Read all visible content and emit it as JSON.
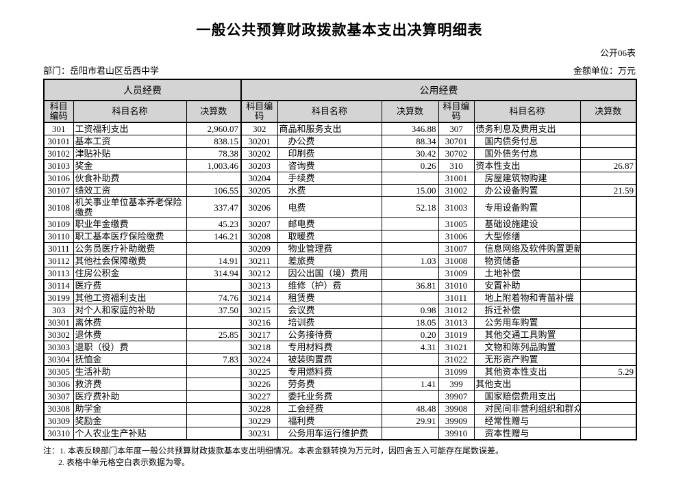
{
  "page": {
    "title": "一般公共预算财政拨款基本支出决算明细表",
    "table_code": "公开06表",
    "department_label": "部门：岳阳市君山区岳西中学",
    "unit_label": "金额单位：万元"
  },
  "table": {
    "group_headers": [
      "人员经费",
      "公用经费"
    ],
    "col_headers": [
      "科目编码",
      "科目名称",
      "决算数"
    ],
    "rows": [
      [
        "301",
        "工资福利支出",
        "2,960.07",
        "302",
        "商品和服务支出",
        "346.88",
        "307",
        "债务利息及费用支出",
        ""
      ],
      [
        "30101",
        "基本工资",
        "838.15",
        "30201",
        "　办公费",
        "88.34",
        "30701",
        "　国内债务付息",
        ""
      ],
      [
        "30102",
        "津贴补贴",
        "78.38",
        "30202",
        "　印刷费",
        "30.42",
        "30702",
        "　国外债务付息",
        ""
      ],
      [
        "30103",
        "奖金",
        "1,003.46",
        "30203",
        "　咨询费",
        "0.26",
        "310",
        "资本性支出",
        "26.87"
      ],
      [
        "30106",
        "伙食补助费",
        "",
        "30204",
        "　手续费",
        "",
        "31001",
        "　房屋建筑物购建",
        ""
      ],
      [
        "30107",
        "绩效工资",
        "106.55",
        "30205",
        "　水费",
        "15.00",
        "31002",
        "　办公设备购置",
        "21.59"
      ],
      [
        "30108",
        "机关事业单位基本养老保险缴费",
        "337.47",
        "30206",
        "　电费",
        "52.18",
        "31003",
        "　专用设备购置",
        ""
      ],
      [
        "30109",
        "职业年金缴费",
        "45.23",
        "30207",
        "　邮电费",
        "",
        "31005",
        "　基础设施建设",
        ""
      ],
      [
        "30110",
        "职工基本医疗保险缴费",
        "146.21",
        "30208",
        "　取暖费",
        "",
        "31006",
        "　大型修缮",
        ""
      ],
      [
        "30111",
        "公务员医疗补助缴费",
        "",
        "30209",
        "　物业管理费",
        "",
        "31007",
        "　信息网络及软件购置更新",
        ""
      ],
      [
        "30112",
        "其他社会保障缴费",
        "14.91",
        "30211",
        "　差旅费",
        "1.03",
        "31008",
        "　物资储备",
        ""
      ],
      [
        "30113",
        "住房公积金",
        "314.94",
        "30212",
        "　因公出国（境）费用",
        "",
        "31009",
        "　土地补偿",
        ""
      ],
      [
        "30114",
        "医疗费",
        "",
        "30213",
        "　维修（护）费",
        "36.81",
        "31010",
        "　安置补助",
        ""
      ],
      [
        "30199",
        "其他工资福利支出",
        "74.76",
        "30214",
        "　租赁费",
        "",
        "31011",
        "　地上附着物和青苗补偿",
        ""
      ],
      [
        "303",
        "对个人和家庭的补助",
        "37.50",
        "30215",
        "　会议费",
        "0.98",
        "31012",
        "　拆迁补偿",
        ""
      ],
      [
        "30301",
        "离休费",
        "",
        "30216",
        "　培训费",
        "18.05",
        "31013",
        "　公务用车购置",
        ""
      ],
      [
        "30302",
        "退休费",
        "25.85",
        "30217",
        "　公务接待费",
        "0.20",
        "31019",
        "　其他交通工具购置",
        ""
      ],
      [
        "30303",
        "退职（役）费",
        "",
        "30218",
        "　专用材料费",
        "4.31",
        "31021",
        "　文物和陈列品购置",
        ""
      ],
      [
        "30304",
        "抚恤金",
        "7.83",
        "30224",
        "　被装购置费",
        "",
        "31022",
        "　无形资产购置",
        ""
      ],
      [
        "30305",
        "生活补助",
        "",
        "30225",
        "　专用燃料费",
        "",
        "31099",
        "　其他资本性支出",
        "5.29"
      ],
      [
        "30306",
        "救济费",
        "",
        "30226",
        "　劳务费",
        "1.41",
        "399",
        "其他支出",
        ""
      ],
      [
        "30307",
        "医疗费补助",
        "",
        "30227",
        "　委托业务费",
        "",
        "39907",
        "　国家赔偿费用支出",
        ""
      ],
      [
        "30308",
        "助学金",
        "",
        "30228",
        "　工会经费",
        "48.48",
        "39908",
        "　对民间非营利组织和群众性自",
        ""
      ],
      [
        "30309",
        "奖励金",
        "",
        "30229",
        "　福利费",
        "29.91",
        "39909",
        "　经常性赠与",
        ""
      ],
      [
        "30310",
        "个人农业生产补贴",
        "",
        "30231",
        "　公务用车运行维护费",
        "",
        "39910",
        "　资本性赠与",
        ""
      ]
    ]
  },
  "notes": {
    "line1": "注：1. 本表反映部门本年度一般公共预算财政拨款基本支出明细情况。本表金额转换为万元时，因四舍五入可能存在尾数误差。",
    "line2": "2. 表格中单元格空白表示数据为零。"
  }
}
